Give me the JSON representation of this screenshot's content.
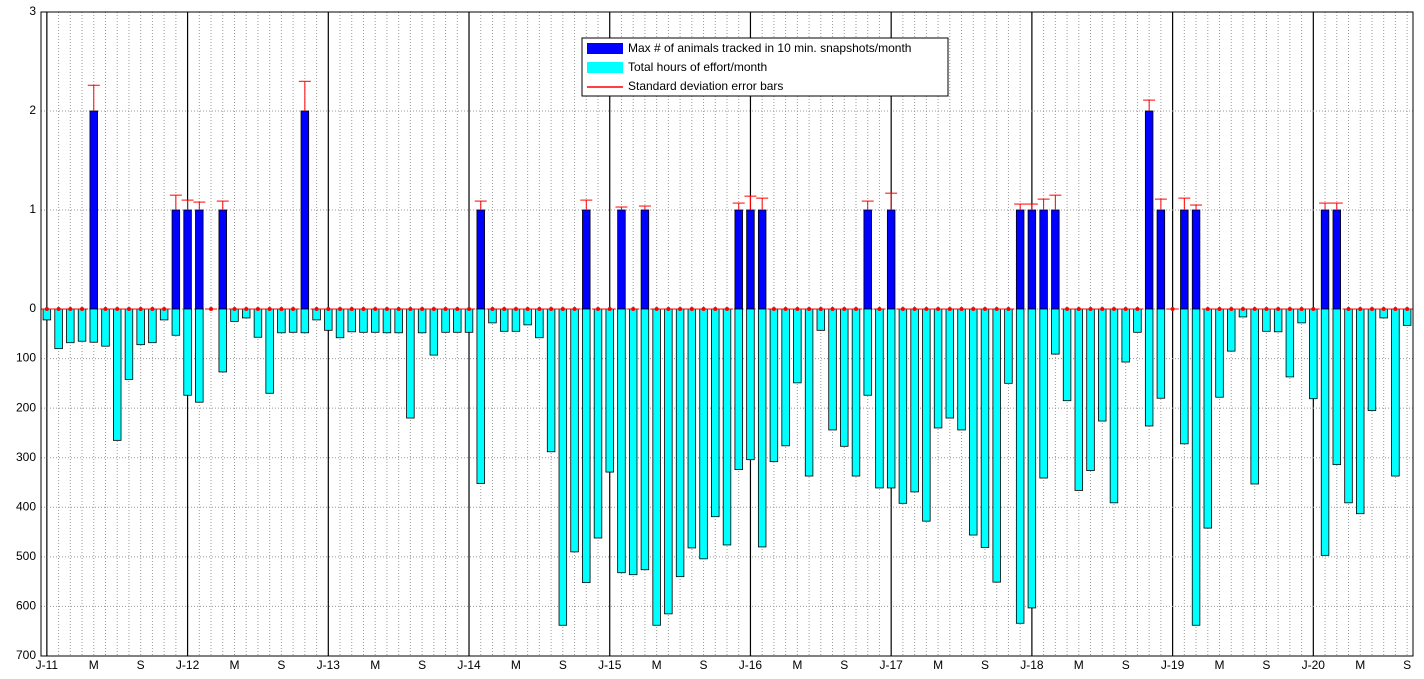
{
  "chart_data": {
    "type": "bar",
    "categories": [
      "J-11",
      null,
      null,
      null,
      "M",
      null,
      null,
      null,
      "S",
      null,
      null,
      null,
      "J-12",
      null,
      null,
      null,
      "M",
      null,
      null,
      null,
      "S",
      null,
      null,
      null,
      "J-13",
      null,
      null,
      null,
      "M",
      null,
      null,
      null,
      "S",
      null,
      null,
      null,
      "J-14",
      null,
      null,
      null,
      "M",
      null,
      null,
      null,
      "S",
      null,
      null,
      null,
      "J-15",
      null,
      null,
      null,
      "M",
      null,
      null,
      null,
      "S",
      null,
      null,
      null,
      "J-16",
      null,
      null,
      null,
      "M",
      null,
      null,
      null,
      "S",
      null,
      null,
      null,
      "J-17",
      null,
      null,
      null,
      "M",
      null,
      null,
      null,
      "S",
      null,
      null,
      null,
      "J-18",
      null,
      null,
      null,
      "M",
      null,
      null,
      null,
      "S",
      null,
      null,
      null,
      "J-19",
      null,
      null,
      null,
      "M",
      null,
      null,
      null,
      "S",
      null,
      null,
      null,
      "J-20",
      null,
      null,
      null,
      "M",
      null,
      null,
      null,
      "S"
    ],
    "series": [
      {
        "name": "Max # of animals tracked in 10 min. snapshots/month",
        "color": "#0000ff",
        "values": [
          0,
          0,
          0,
          0,
          2,
          0,
          0,
          0,
          0,
          0,
          0,
          1,
          1,
          1,
          0,
          1,
          0,
          0,
          0,
          0,
          0,
          0,
          2,
          0,
          0,
          0,
          0,
          0,
          0,
          0,
          0,
          0,
          0,
          0,
          0,
          0,
          0,
          1,
          0,
          0,
          0,
          0,
          0,
          0,
          0,
          0,
          1,
          0,
          0,
          1,
          0,
          1,
          0,
          0,
          0,
          0,
          0,
          0,
          0,
          1,
          1,
          1,
          0,
          0,
          0,
          0,
          0,
          0,
          0,
          0,
          1,
          0,
          1,
          0,
          0,
          0,
          0,
          0,
          0,
          0,
          0,
          0,
          0,
          1,
          1,
          1,
          1,
          0,
          0,
          0,
          0,
          0,
          0,
          0,
          2,
          1,
          0,
          1,
          1,
          0,
          0,
          0,
          0,
          0,
          0,
          0,
          0,
          0,
          0,
          1,
          1,
          0,
          0,
          0,
          0,
          0,
          0
        ],
        "errors": [
          0,
          0,
          0,
          0,
          0.26,
          0,
          0,
          0,
          0,
          0,
          0,
          0.15,
          0.1,
          0.08,
          0,
          0.09,
          0,
          0,
          0,
          0,
          0,
          0,
          0.3,
          0,
          0,
          0,
          0,
          0,
          0,
          0,
          0,
          0,
          0,
          0,
          0,
          0,
          0,
          0.09,
          0,
          0,
          0,
          0,
          0,
          0,
          0,
          0,
          0.1,
          0,
          0,
          0.03,
          0,
          0.04,
          0,
          0,
          0,
          0,
          0,
          0,
          0,
          0.07,
          0.14,
          0.12,
          0,
          0,
          0,
          0,
          0,
          0,
          0,
          0,
          0.09,
          0,
          0.17,
          0,
          0,
          0,
          0,
          0,
          0,
          0,
          0,
          0,
          0,
          0.06,
          0.06,
          0.11,
          0.15,
          0,
          0,
          0,
          0,
          0,
          0,
          0,
          0.11,
          0.11,
          0,
          0.12,
          0.05,
          0,
          0,
          0,
          0,
          0,
          0,
          0,
          0,
          0,
          0,
          0.07,
          0.07,
          0,
          0,
          0,
          0,
          0,
          0
        ]
      },
      {
        "name": "Total hours of effort/month",
        "color": "#00ffff",
        "axis": "y2",
        "values": [
          22,
          80,
          68,
          65,
          67,
          75,
          265,
          142,
          72,
          68,
          22,
          53,
          174,
          188,
          0,
          127,
          25,
          18,
          57,
          170,
          48,
          47,
          48,
          22,
          43,
          58,
          46,
          47,
          47,
          48,
          48,
          220,
          48,
          93,
          47,
          47,
          47,
          352,
          28,
          45,
          45,
          32,
          58,
          288,
          638,
          490,
          552,
          462,
          329,
          532,
          536,
          526,
          638,
          615,
          540,
          482,
          504,
          419,
          476,
          324,
          304,
          480,
          308,
          276,
          149,
          337,
          43,
          244,
          277,
          337,
          174,
          361,
          361,
          392,
          369,
          428,
          240,
          220,
          244,
          456,
          481,
          551,
          150,
          634,
          603,
          341,
          91,
          185,
          366,
          326,
          226,
          391,
          107,
          47,
          236,
          180,
          0,
          272,
          638,
          442,
          178,
          85,
          16,
          353,
          45,
          46,
          137,
          28,
          181,
          497,
          314,
          391,
          413,
          205,
          18,
          337,
          33
        ]
      }
    ],
    "error_bars": {
      "name": "Standard deviation error bars",
      "color": "#ff0000"
    },
    "ylim": [
      0,
      3
    ],
    "yticks": [
      0,
      1,
      2,
      3
    ],
    "y2lim": [
      0,
      700
    ],
    "y2ticks": [
      100,
      200,
      300,
      400,
      500,
      600,
      700
    ],
    "grid": true,
    "legend": "top"
  }
}
